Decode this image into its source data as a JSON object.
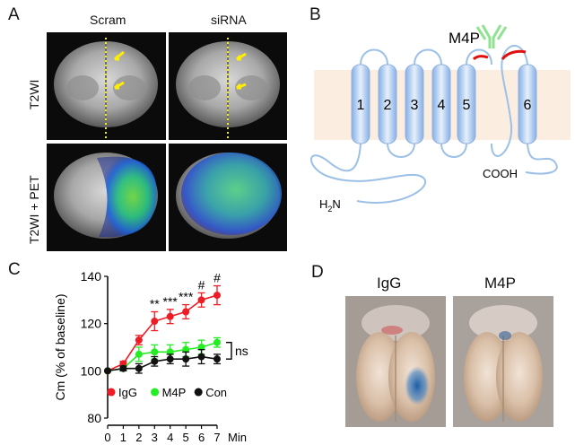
{
  "panels": {
    "a": {
      "letter": "A",
      "col_scram": "Scram",
      "col_sirna": "siRNA",
      "row_t2wi": "T2WI",
      "row_pet": "T2WI + PET"
    },
    "b": {
      "letter": "B",
      "ligand": "M4P",
      "segments": [
        "1",
        "2",
        "3",
        "4",
        "5",
        "6"
      ],
      "n_term": "H",
      "n_sub": "2",
      "n_tail": "N",
      "c_term": "COOH"
    },
    "c": {
      "letter": "C"
    },
    "d": {
      "letter": "D",
      "label_igg": "IgG",
      "label_m4p": "M4P"
    }
  },
  "colors": {
    "igg": "#ee1c25",
    "m4p": "#22ee22",
    "con": "#111111",
    "helix": "#a9c7ee",
    "membrane": "#fbeee0"
  },
  "chart_data": {
    "type": "line",
    "ylabel": "Cm (% of baseline)",
    "xlabel": "Min",
    "xlim": [
      0,
      7
    ],
    "ylim": [
      80,
      140
    ],
    "x_ticks": [
      "0",
      "1",
      "2",
      "3",
      "4",
      "5",
      "6",
      "7"
    ],
    "y_ticks": [
      "80",
      "100",
      "120",
      "140"
    ],
    "x": [
      0,
      1,
      2,
      3,
      4,
      5,
      6,
      7
    ],
    "series": [
      {
        "name": "IgG",
        "color": "#ee1c25",
        "values": [
          100,
          103,
          113,
          121,
          123,
          125,
          130,
          132
        ],
        "errors": [
          0,
          1,
          2,
          4,
          3,
          3,
          3,
          4
        ]
      },
      {
        "name": "M4P",
        "color": "#22ee22",
        "values": [
          100,
          101,
          107,
          108,
          108,
          109,
          110,
          112
        ],
        "errors": [
          0,
          1,
          3,
          3,
          3,
          3,
          3,
          2
        ]
      },
      {
        "name": "Con",
        "color": "#111111",
        "values": [
          100,
          101,
          101,
          104,
          105,
          105,
          106,
          105
        ],
        "errors": [
          0,
          1,
          2,
          2,
          2,
          3,
          3,
          2
        ]
      }
    ],
    "annotations": [
      {
        "x": 3,
        "text": "**"
      },
      {
        "x": 4,
        "text": "***"
      },
      {
        "x": 5,
        "text": "***"
      },
      {
        "x": 6,
        "text": "#"
      },
      {
        "x": 7,
        "text": "#"
      }
    ],
    "bracket_label": "ns",
    "legend_placement": "bottom"
  }
}
